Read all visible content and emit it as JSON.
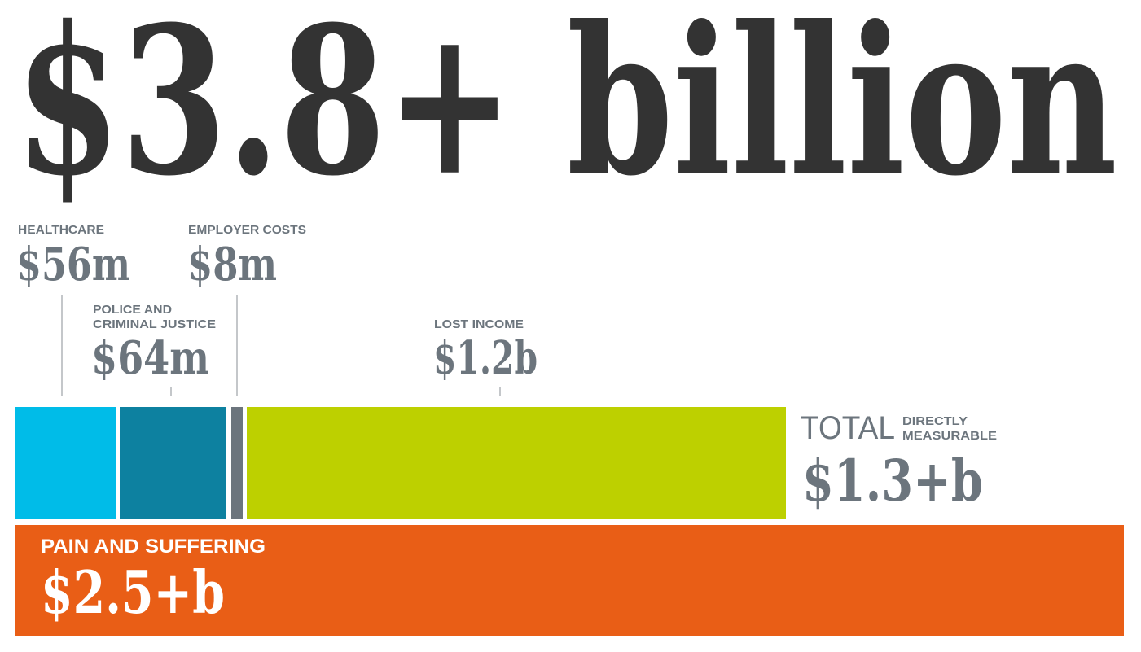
{
  "headline": "$3.8+ billion",
  "colors": {
    "headline": "#333333",
    "text_gray": "#6c757d",
    "healthcare": "#00bce8",
    "police": "#0d81a0",
    "employer": "#6c757d",
    "lost_income": "#bdd000",
    "pain": "#e95e16",
    "leader_line": "#b0b4b8"
  },
  "segments": {
    "healthcare": {
      "label": "HEALTHCARE",
      "value": "$56m"
    },
    "police": {
      "label_line1": "POLICE AND",
      "label_line2": "CRIMINAL JUSTICE",
      "value": "$64m"
    },
    "employer": {
      "label": "EMPLOYER COSTS",
      "value": "$8m"
    },
    "lost_income": {
      "label": "LOST INCOME",
      "value": "$1.2b"
    }
  },
  "total": {
    "word": "TOTAL",
    "qualifier_line1": "DIRECTLY",
    "qualifier_line2": "MEASURABLE",
    "value": "$1.3+b"
  },
  "pain": {
    "label": "PAIN AND SUFFERING",
    "value": "$2.5+b"
  },
  "chart_data": {
    "type": "bar",
    "title": "$3.8+ billion",
    "unit": "USD millions",
    "categories": [
      "Healthcare",
      "Police and criminal justice",
      "Employer costs",
      "Lost income",
      "Pain and suffering"
    ],
    "values": [
      56,
      64,
      8,
      1200,
      2500
    ],
    "groups": {
      "Total directly measurable": 1300,
      "Pain and suffering": 2500
    },
    "grand_total": 3800
  }
}
